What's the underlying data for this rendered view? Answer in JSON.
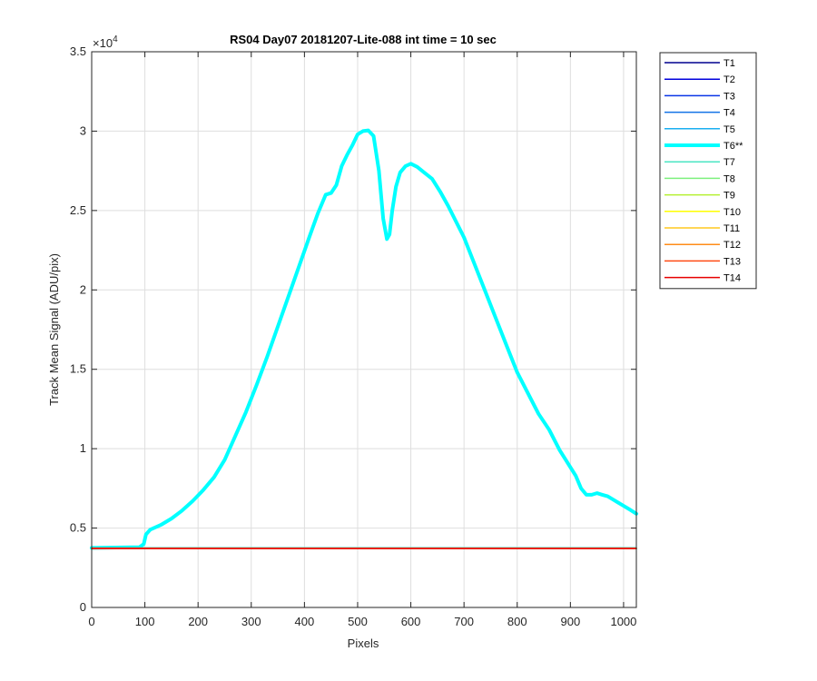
{
  "chart_data": {
    "type": "line",
    "title": "RS04 Day07 20181207-Lite-088 int time = 10 sec",
    "xlabel": "Pixels",
    "ylabel": "Track Mean Signal (ADU/pix)",
    "y_exponent_label": "×10",
    "y_exponent_power": "4",
    "xlim": [
      0,
      1024
    ],
    "ylim": [
      0,
      35000
    ],
    "xticks": [
      0,
      100,
      200,
      300,
      400,
      500,
      600,
      700,
      800,
      900,
      1000
    ],
    "xtick_labels": [
      "0",
      "100",
      "200",
      "300",
      "400",
      "500",
      "600",
      "700",
      "800",
      "900",
      "1000"
    ],
    "yticks": [
      0,
      5000,
      10000,
      15000,
      20000,
      25000,
      30000,
      35000
    ],
    "ytick_labels": [
      "0",
      "0.5",
      "1",
      "1.5",
      "2",
      "2.5",
      "3",
      "3.5"
    ],
    "grid": true,
    "legend_position": "outside-right",
    "series": [
      {
        "name": "T1",
        "color": "#00008f",
        "width": 1.5,
        "x": [
          0,
          1024
        ],
        "y": [
          3720,
          3720
        ]
      },
      {
        "name": "T2",
        "color": "#0000dc",
        "width": 1.5,
        "x": [
          0,
          1024
        ],
        "y": [
          3720,
          3720
        ]
      },
      {
        "name": "T3",
        "color": "#0a35e6",
        "width": 1.5,
        "x": [
          0,
          1024
        ],
        "y": [
          3720,
          3720
        ]
      },
      {
        "name": "T4",
        "color": "#1373e6",
        "width": 1.5,
        "x": [
          0,
          1024
        ],
        "y": [
          3720,
          3720
        ]
      },
      {
        "name": "T5",
        "color": "#1aaff0",
        "width": 1.5,
        "x": [
          0,
          1024
        ],
        "y": [
          3720,
          3720
        ]
      },
      {
        "name": "T6**",
        "color": "#00ffff",
        "width": 4,
        "x": [
          0,
          90,
          98,
          102,
          110,
          130,
          150,
          170,
          190,
          210,
          230,
          250,
          270,
          290,
          310,
          330,
          350,
          370,
          390,
          410,
          425,
          440,
          450,
          460,
          470,
          480,
          490,
          500,
          510,
          520,
          530,
          540,
          548,
          555,
          560,
          565,
          572,
          580,
          590,
          600,
          612,
          625,
          640,
          655,
          670,
          685,
          700,
          720,
          740,
          760,
          780,
          800,
          820,
          840,
          860,
          880,
          895,
          910,
          920,
          930,
          940,
          950,
          960,
          970,
          980,
          990,
          1000,
          1010,
          1024
        ],
        "y": [
          3750,
          3800,
          4000,
          4600,
          4900,
          5200,
          5600,
          6100,
          6700,
          7400,
          8200,
          9300,
          10800,
          12300,
          14000,
          15800,
          17700,
          19600,
          21500,
          23400,
          24800,
          26000,
          26100,
          26600,
          27800,
          28500,
          29100,
          29800,
          30000,
          30050,
          29700,
          27500,
          24500,
          23200,
          23500,
          25000,
          26500,
          27400,
          27800,
          27950,
          27750,
          27400,
          27000,
          26200,
          25300,
          24300,
          23300,
          21600,
          19900,
          18200,
          16500,
          14800,
          13500,
          12200,
          11200,
          9900,
          9100,
          8300,
          7500,
          7100,
          7100,
          7200,
          7100,
          7000,
          6800,
          6600,
          6400,
          6200,
          5900
        ]
      },
      {
        "name": "T7",
        "color": "#4be6c3",
        "width": 1.5,
        "x": [
          0,
          1024
        ],
        "y": [
          3760,
          3760
        ]
      },
      {
        "name": "T8",
        "color": "#7df07d",
        "width": 1.5,
        "x": [
          0,
          1024
        ],
        "y": [
          3720,
          3720
        ]
      },
      {
        "name": "T9",
        "color": "#b4f032",
        "width": 1.5,
        "x": [
          0,
          1024
        ],
        "y": [
          3720,
          3720
        ]
      },
      {
        "name": "T10",
        "color": "#ffff00",
        "width": 1.5,
        "x": [
          0,
          1024
        ],
        "y": [
          3720,
          3720
        ]
      },
      {
        "name": "T11",
        "color": "#ffc81e",
        "width": 1.5,
        "x": [
          0,
          1024
        ],
        "y": [
          3720,
          3720
        ]
      },
      {
        "name": "T12",
        "color": "#ff8c19",
        "width": 1.5,
        "x": [
          0,
          1024
        ],
        "y": [
          3720,
          3720
        ]
      },
      {
        "name": "T13",
        "color": "#ff4b14",
        "width": 1.5,
        "x": [
          0,
          1024
        ],
        "y": [
          3720,
          3720
        ]
      },
      {
        "name": "T14",
        "color": "#e60000",
        "width": 1.5,
        "x": [
          0,
          1024
        ],
        "y": [
          3720,
          3720
        ]
      }
    ]
  }
}
